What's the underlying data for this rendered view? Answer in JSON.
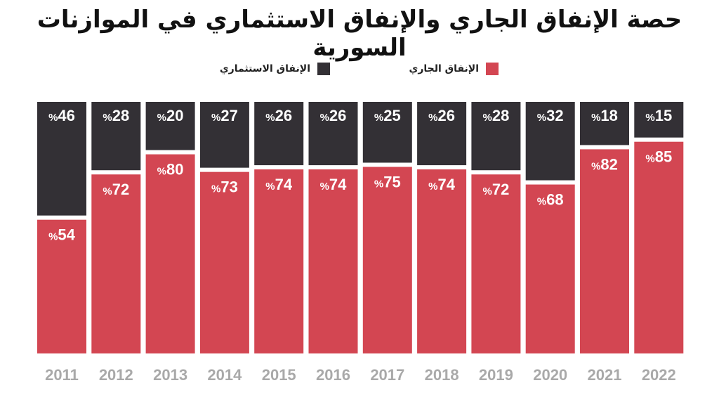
{
  "title": "حصة الإنفاق الجاري والإنفاق الاستثماري في الموازنات السورية",
  "legend": {
    "current": "الإنفاق الجاري",
    "investment": "الإنفاق الاستثماري"
  },
  "colors": {
    "current": "#d34652",
    "investment": "#333035"
  },
  "chart_data": {
    "type": "bar",
    "stacked": true,
    "categories": [
      "2011",
      "2012",
      "2013",
      "2014",
      "2015",
      "2016",
      "2017",
      "2018",
      "2019",
      "2020",
      "2021",
      "2022"
    ],
    "series": [
      {
        "name": "الإنفاق الجاري",
        "values": [
          54,
          72,
          80,
          73,
          74,
          74,
          75,
          74,
          72,
          68,
          82,
          85
        ]
      },
      {
        "name": "الإنفاق الاستثماري",
        "values": [
          46,
          28,
          20,
          27,
          26,
          26,
          25,
          26,
          28,
          32,
          18,
          15
        ]
      }
    ],
    "value_suffix": "%",
    "ylim": [
      0,
      100
    ],
    "grid": false,
    "legend_position": "top"
  }
}
